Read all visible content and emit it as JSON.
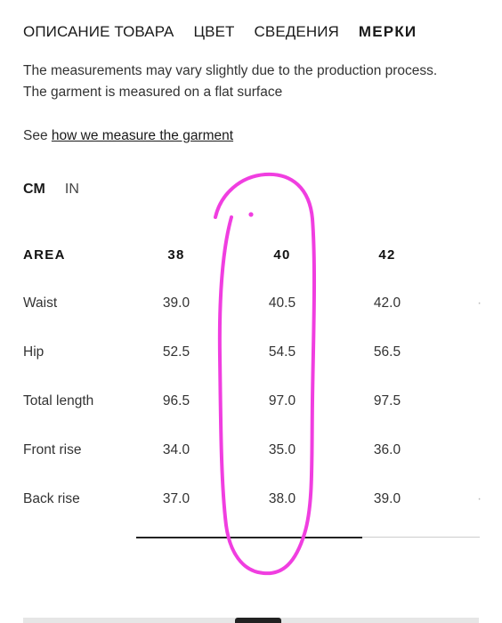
{
  "tabs": [
    {
      "label": "ОПИСАНИЕ ТОВАРА",
      "active": false
    },
    {
      "label": "ЦВЕТ",
      "active": false
    },
    {
      "label": "СВЕДЕНИЯ",
      "active": false
    },
    {
      "label": "МЕРКИ",
      "active": true
    }
  ],
  "description": {
    "line1": "The measurements may vary slightly due to the production process.",
    "line2": "The garment is measured on a flat surface"
  },
  "see_link": {
    "prefix": "See ",
    "link_text": "how we measure the garment"
  },
  "units": [
    {
      "label": "CM",
      "active": true
    },
    {
      "label": "IN",
      "active": false
    }
  ],
  "table": {
    "area_label": "AREA",
    "sizes": [
      "38",
      "40",
      "42"
    ],
    "rows": [
      {
        "label": "Waist",
        "values": [
          "39.0",
          "40.5",
          "42.0"
        ]
      },
      {
        "label": "Hip",
        "values": [
          "52.5",
          "54.5",
          "56.5"
        ]
      },
      {
        "label": "Total length",
        "values": [
          "96.5",
          "97.0",
          "97.5"
        ]
      },
      {
        "label": "Front rise",
        "values": [
          "34.0",
          "35.0",
          "36.0"
        ]
      },
      {
        "label": "Back rise",
        "values": [
          "37.0",
          "38.0",
          "39.0"
        ]
      }
    ]
  },
  "annotation_color": "#f03ee0"
}
